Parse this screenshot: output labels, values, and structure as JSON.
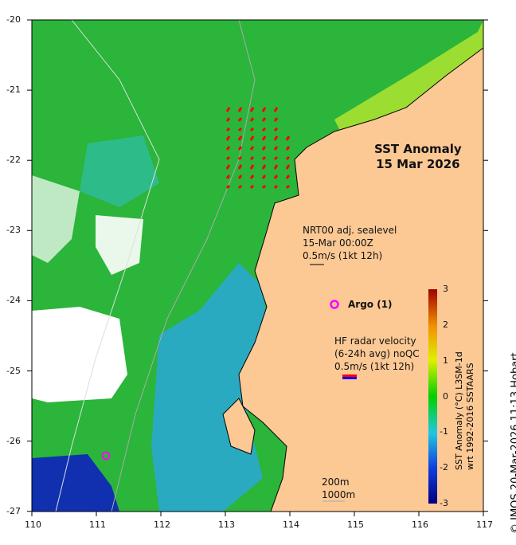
{
  "title": {
    "line1": "SST Anomaly",
    "line2": "15 Mar 2026"
  },
  "sealevel_legend": {
    "line1": "NRT00 adj. sealevel",
    "line2": "15-Mar 00:00Z",
    "line3": "0.5m/s (1kt 12h)"
  },
  "argo_legend": {
    "symbol": "o",
    "label": "Argo (1)"
  },
  "hf_radar_legend": {
    "line1": "HF radar velocity",
    "line2": "(6-24h avg) noQC",
    "line3": "0.5m/s (1kt 12h)"
  },
  "isobaths": {
    "line1": "200m",
    "line2": "1000m"
  },
  "colorbar": {
    "label1": "SST Anomaly (°C) L3SM-1d",
    "label2": "wrt 1992-2016 SSTAARS",
    "ticks": [
      "3",
      "2",
      "1",
      "0",
      "-1",
      "-2",
      "-3"
    ],
    "min": -3,
    "max": 3
  },
  "credit": "© IMOS 20-Mar-2026 11:13 Hobart",
  "axes": {
    "x_ticks": [
      "110",
      "111",
      "112",
      "113",
      "114",
      "115",
      "116",
      "117"
    ],
    "y_ticks": [
      "-20",
      "-21",
      "-22",
      "-23",
      "-24",
      "-25",
      "-26",
      "-27"
    ],
    "lon_range": [
      110,
      117
    ],
    "lat_range": [
      -27,
      -20
    ]
  },
  "colors": {
    "land": "#fcc995",
    "ocean": "#22bb33",
    "argo": "#ff00ff",
    "hf_arrows": "#ff0000"
  }
}
